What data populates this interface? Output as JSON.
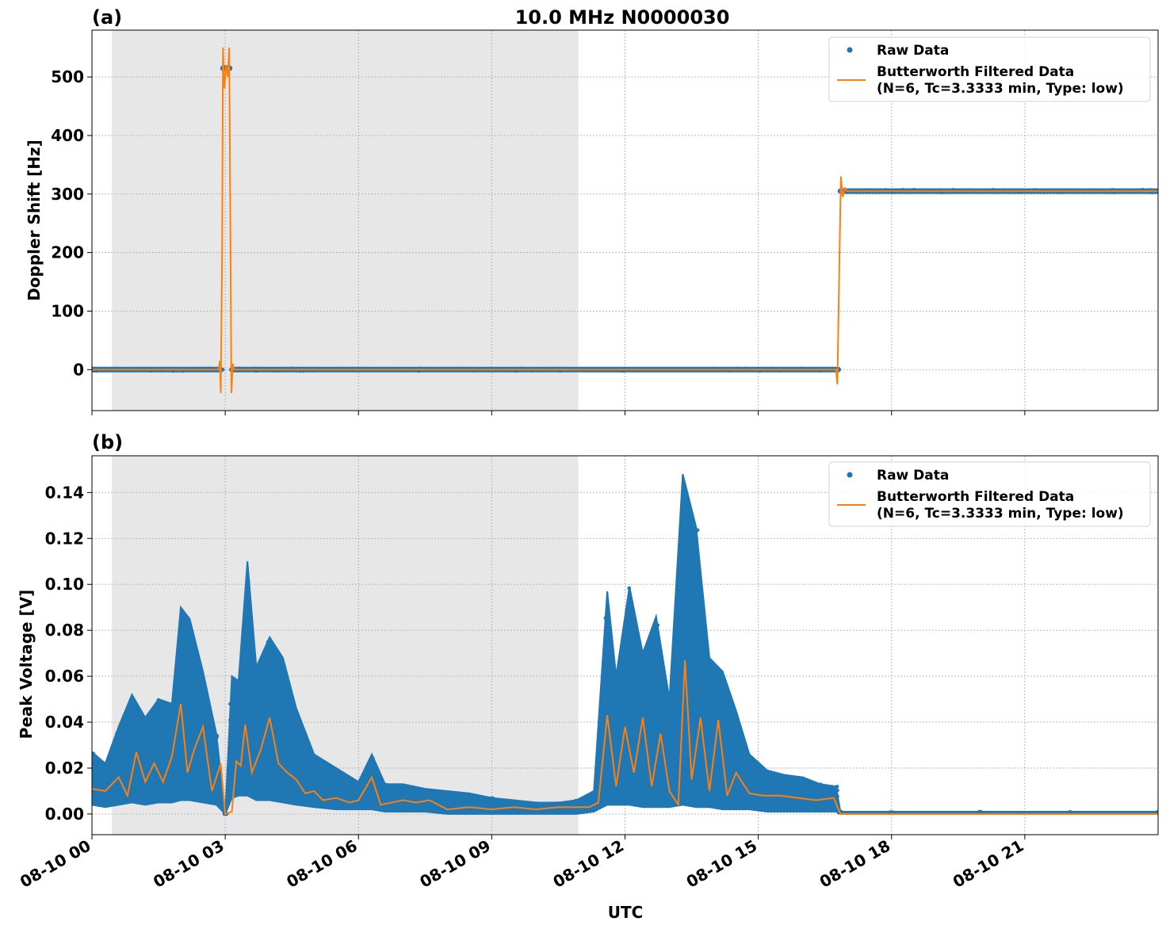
{
  "figure": {
    "title": "10.0 MHz N0000030",
    "xlabel": "UTC",
    "x_ticks": [
      "08-10 00",
      "08-10 03",
      "08-10 06",
      "08-10 09",
      "08-10 12",
      "08-10 15",
      "08-10 18",
      "08-10 21"
    ],
    "legend": {
      "raw": "Raw Data",
      "filtered_line1": "Butterworth Filtered Data",
      "filtered_line2": "(N=6, Tc=3.3333 min, Type: low)"
    },
    "colors": {
      "raw": "#1f77b4",
      "filtered": "#ff7f0e",
      "night_shading": "#e7e7e7"
    }
  },
  "chart_data": [
    {
      "panel": "(a)",
      "type": "scatter",
      "ylabel": "Doppler Shift [Hz]",
      "xlim_hours": [
        0,
        24
      ],
      "ylim": [
        -70,
        580
      ],
      "y_ticks": [
        "0",
        "100",
        "200",
        "300",
        "400",
        "500"
      ],
      "y_tick_values": [
        0,
        100,
        200,
        300,
        400,
        500
      ],
      "shaded_interval_hours": [
        0.45,
        10.95
      ],
      "series": [
        {
          "name": "Raw Data",
          "points": [
            [
              0,
              0
            ],
            [
              2.9,
              0
            ],
            [
              2.95,
              515
            ],
            [
              3.1,
              515
            ],
            [
              3.15,
              0
            ],
            [
              16.8,
              0
            ],
            [
              16.85,
              305
            ],
            [
              24,
              305
            ]
          ]
        },
        {
          "name": "Butterworth Filtered Data",
          "points": [
            [
              0,
              0
            ],
            [
              2.85,
              0
            ],
            [
              2.88,
              15
            ],
            [
              2.9,
              -40
            ],
            [
              2.93,
              200
            ],
            [
              2.95,
              550
            ],
            [
              2.98,
              480
            ],
            [
              3.02,
              520
            ],
            [
              3.06,
              500
            ],
            [
              3.09,
              550
            ],
            [
              3.12,
              200
            ],
            [
              3.14,
              -40
            ],
            [
              3.17,
              10
            ],
            [
              3.2,
              0
            ],
            [
              16.75,
              0
            ],
            [
              16.78,
              -25
            ],
            [
              16.83,
              200
            ],
            [
              16.86,
              330
            ],
            [
              16.9,
              295
            ],
            [
              16.95,
              310
            ],
            [
              17.0,
              305
            ],
            [
              24,
              305
            ]
          ]
        }
      ]
    },
    {
      "panel": "(b)",
      "type": "scatter",
      "ylabel": "Peak Voltage [V]",
      "xlim_hours": [
        0,
        24
      ],
      "ylim": [
        -0.009,
        0.156
      ],
      "y_ticks": [
        "0.00",
        "0.02",
        "0.04",
        "0.06",
        "0.08",
        "0.10",
        "0.12",
        "0.14"
      ],
      "y_tick_values": [
        0,
        0.02,
        0.04,
        0.06,
        0.08,
        0.1,
        0.12,
        0.14
      ],
      "shaded_interval_hours": [
        0.45,
        10.95
      ],
      "series": [
        {
          "name": "Raw Data (envelope)",
          "hours": [
            0,
            0.3,
            0.6,
            0.9,
            1.2,
            1.5,
            1.8,
            2.0,
            2.2,
            2.5,
            2.8,
            3.0,
            3.15,
            3.3,
            3.5,
            3.7,
            4.0,
            4.3,
            4.6,
            5.0,
            5.5,
            6.0,
            6.3,
            6.6,
            7.0,
            7.5,
            8.0,
            8.5,
            9.0,
            9.5,
            10.0,
            10.5,
            10.9,
            11.3,
            11.6,
            11.8,
            12.1,
            12.4,
            12.7,
            13.0,
            13.3,
            13.6,
            13.9,
            14.2,
            14.5,
            14.8,
            15.2,
            15.6,
            16.0,
            16.4,
            16.75,
            16.85,
            18,
            20,
            22,
            24
          ],
          "max": [
            0.027,
            0.022,
            0.038,
            0.052,
            0.042,
            0.05,
            0.048,
            0.09,
            0.085,
            0.062,
            0.035,
            0.0,
            0.06,
            0.058,
            0.11,
            0.064,
            0.077,
            0.068,
            0.046,
            0.026,
            0.02,
            0.014,
            0.026,
            0.013,
            0.013,
            0.011,
            0.01,
            0.009,
            0.007,
            0.006,
            0.005,
            0.005,
            0.006,
            0.01,
            0.097,
            0.06,
            0.099,
            0.07,
            0.086,
            0.05,
            0.148,
            0.125,
            0.068,
            0.062,
            0.045,
            0.026,
            0.019,
            0.017,
            0.016,
            0.013,
            0.012,
            0.001,
            0.001,
            0.001,
            0.001,
            0.001
          ],
          "min": [
            0.004,
            0.003,
            0.004,
            0.005,
            0.004,
            0.005,
            0.005,
            0.006,
            0.006,
            0.005,
            0.004,
            0.0,
            0.007,
            0.008,
            0.008,
            0.006,
            0.006,
            0.005,
            0.004,
            0.003,
            0.002,
            0.002,
            0.002,
            0.001,
            0.001,
            0.001,
            0.0,
            0.0,
            0.0,
            0.0,
            0.0,
            0.0,
            0.0,
            0.001,
            0.004,
            0.004,
            0.004,
            0.003,
            0.003,
            0.003,
            0.004,
            0.003,
            0.003,
            0.002,
            0.002,
            0.002,
            0.001,
            0.001,
            0.001,
            0.001,
            0.001,
            0.0,
            0.0,
            0.0,
            0.0,
            0.0
          ]
        },
        {
          "name": "Butterworth Filtered Data",
          "points": [
            [
              0,
              0.011
            ],
            [
              0.3,
              0.01
            ],
            [
              0.6,
              0.016
            ],
            [
              0.8,
              0.008
            ],
            [
              1.0,
              0.027
            ],
            [
              1.2,
              0.014
            ],
            [
              1.4,
              0.022
            ],
            [
              1.6,
              0.014
            ],
            [
              1.8,
              0.025
            ],
            [
              2.0,
              0.048
            ],
            [
              2.15,
              0.018
            ],
            [
              2.3,
              0.028
            ],
            [
              2.5,
              0.038
            ],
            [
              2.7,
              0.01
            ],
            [
              2.9,
              0.022
            ],
            [
              3.0,
              0.0
            ],
            [
              3.15,
              0.001
            ],
            [
              3.25,
              0.023
            ],
            [
              3.35,
              0.021
            ],
            [
              3.45,
              0.039
            ],
            [
              3.6,
              0.018
            ],
            [
              3.8,
              0.028
            ],
            [
              4.0,
              0.042
            ],
            [
              4.2,
              0.022
            ],
            [
              4.4,
              0.018
            ],
            [
              4.6,
              0.015
            ],
            [
              4.8,
              0.009
            ],
            [
              5.0,
              0.01
            ],
            [
              5.2,
              0.006
            ],
            [
              5.5,
              0.007
            ],
            [
              5.8,
              0.005
            ],
            [
              6.0,
              0.006
            ],
            [
              6.3,
              0.016
            ],
            [
              6.5,
              0.004
            ],
            [
              7.0,
              0.006
            ],
            [
              7.3,
              0.005
            ],
            [
              7.6,
              0.006
            ],
            [
              8.0,
              0.002
            ],
            [
              8.5,
              0.003
            ],
            [
              9.0,
              0.002
            ],
            [
              9.5,
              0.003
            ],
            [
              10.0,
              0.002
            ],
            [
              10.5,
              0.003
            ],
            [
              10.9,
              0.003
            ],
            [
              11.2,
              0.003
            ],
            [
              11.4,
              0.005
            ],
            [
              11.6,
              0.043
            ],
            [
              11.8,
              0.012
            ],
            [
              12.0,
              0.038
            ],
            [
              12.2,
              0.018
            ],
            [
              12.4,
              0.042
            ],
            [
              12.6,
              0.012
            ],
            [
              12.8,
              0.035
            ],
            [
              13.0,
              0.01
            ],
            [
              13.2,
              0.004
            ],
            [
              13.35,
              0.067
            ],
            [
              13.5,
              0.015
            ],
            [
              13.7,
              0.042
            ],
            [
              13.9,
              0.01
            ],
            [
              14.1,
              0.041
            ],
            [
              14.3,
              0.008
            ],
            [
              14.5,
              0.018
            ],
            [
              14.8,
              0.009
            ],
            [
              15.1,
              0.008
            ],
            [
              15.5,
              0.008
            ],
            [
              15.9,
              0.007
            ],
            [
              16.3,
              0.006
            ],
            [
              16.7,
              0.007
            ],
            [
              16.85,
              0.0
            ],
            [
              24,
              0.0
            ]
          ]
        }
      ]
    }
  ]
}
